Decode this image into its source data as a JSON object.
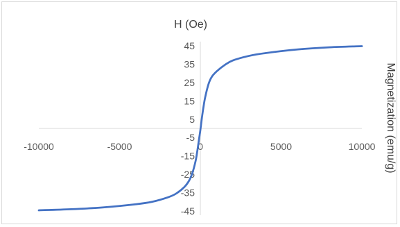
{
  "chart_data": {
    "type": "line",
    "title": "",
    "xlabel": "H (Oe)",
    "ylabel": "Magnetization (emu/g)",
    "xlim": [
      -10000,
      10000
    ],
    "ylim": [
      -45,
      45
    ],
    "x_ticks": [
      "-10000",
      "-5000",
      "0",
      "5000",
      "10000"
    ],
    "y_ticks": [
      "45",
      "35",
      "25",
      "15",
      "5",
      "-5",
      "-15",
      "-25",
      "-35",
      "-45"
    ],
    "grid": false,
    "legend": "none",
    "series": [
      {
        "color": "#4472c4",
        "x": [
          -10000,
          -8000,
          -6000,
          -4000,
          -3000,
          -2000,
          -1500,
          -1000,
          -700,
          -500,
          -300,
          -200,
          -100,
          0,
          100,
          200,
          300,
          500,
          700,
          1000,
          1500,
          2000,
          3000,
          4000,
          6000,
          8000,
          10000
        ],
        "y": [
          -44.6,
          -44.0,
          -43.0,
          -41.3,
          -40.0,
          -37.5,
          -35.5,
          -32.0,
          -28.5,
          -24.5,
          -18.0,
          -13.0,
          -7.0,
          -1.0,
          6.0,
          12.0,
          17.0,
          24.0,
          28.0,
          31.0,
          34.5,
          37.0,
          39.5,
          41.0,
          43.0,
          44.2,
          44.8
        ]
      }
    ]
  }
}
